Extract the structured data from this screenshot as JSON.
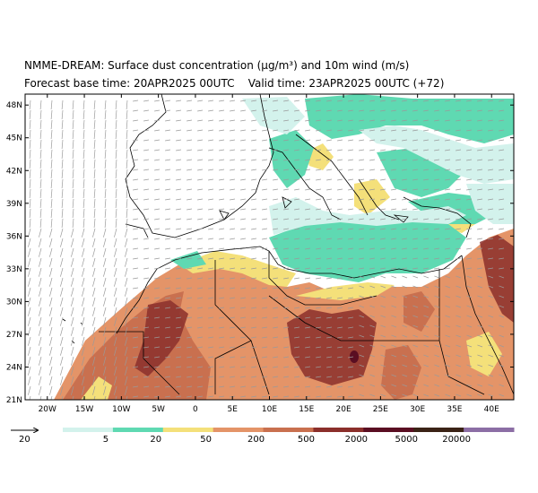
{
  "title": {
    "line1": "NMME-DREAM: Surface dust concentration (µg/m³) and 10m wind (m/s)",
    "line2": "Forecast base time: 20APR2025 00UTC    Valid time: 23APR2025 00UTC (+72)"
  },
  "map": {
    "lon_range": [
      -23,
      43
    ],
    "lat_range": [
      21,
      49
    ],
    "lon_ticks": [
      "20W",
      "15W",
      "10W",
      "5W",
      "0",
      "5E",
      "10E",
      "15E",
      "20E",
      "25E",
      "30E",
      "35E",
      "40E"
    ],
    "lat_ticks": [
      "21N",
      "24N",
      "27N",
      "30N",
      "33N",
      "36N",
      "39N",
      "42N",
      "45N",
      "48N"
    ],
    "background_color": "#ffffff",
    "land_outline_color": "#000000",
    "wind_arrow_color": "#9a9a9a"
  },
  "colorbar": {
    "labels": [
      "5",
      "20",
      "50",
      "200",
      "500",
      "2000",
      "5000",
      "20000"
    ],
    "colors": [
      "#d3f2ec",
      "#5fd9b2",
      "#f4e07a",
      "#e49468",
      "#c9704f",
      "#8b2f2b",
      "#5a0e22",
      "#3b2316",
      "#8c6ea5"
    ]
  },
  "wind_legend": {
    "label": "20"
  }
}
